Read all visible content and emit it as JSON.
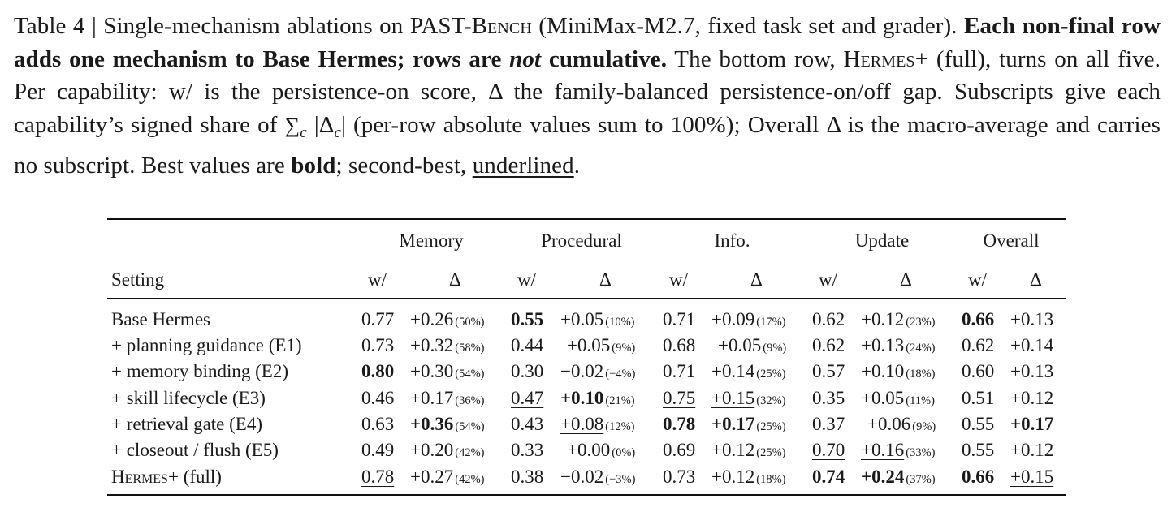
{
  "caption": {
    "label": "Table 4 | Single-mechanism ablations on ",
    "bench_prefix": "PAST-",
    "bench_sc": "Bench",
    "after_bench": " (MiniMax-M2.7, fixed task set and grader). ",
    "bold_a": "Each non-final row adds one mechanism to Base Hermes; rows are ",
    "bold_not": "not",
    "bold_b": " cumulative.",
    "after_bold": " The bottom row, ",
    "hermes_sc": "Hermes+",
    "sentence2": " (full), turns on all five. Per capability: w/ is the persistence-on score, Δ the family-balanced persistence-on/off gap. Subscripts give each capability’s signed share of ",
    "sum_sym": "∑",
    "sum_sub": "c",
    "abs_open": " |Δ",
    "abs_sub": "c",
    "abs_close": "|",
    "sentence3": " (per-row absolute values sum to 100%); Overall Δ is the macro-average and carries no subscript. Best values are ",
    "bold_word": "bold",
    "sentence4": "; second-best, ",
    "underlined_word": "underlined",
    "end": "."
  },
  "table": {
    "groups": [
      "Memory",
      "Procedural",
      "Info.",
      "Update",
      "Overall"
    ],
    "setting_header": "Setting",
    "sub_headers": [
      "w/",
      "Δ",
      "w/",
      "Δ",
      "w/",
      "Δ",
      "w/",
      "Δ",
      "w/",
      "Δ"
    ],
    "rows": [
      {
        "setting": "Base Hermes",
        "sc": false,
        "mem_w": "0.77",
        "mem_d": "+0.26",
        "mem_p": "(50%)",
        "pro_w": "0.55",
        "pro_d": "+0.05",
        "pro_p": "(10%)",
        "inf_w": "0.71",
        "inf_d": "+0.09",
        "inf_p": "(17%)",
        "upd_w": "0.62",
        "upd_d": "+0.12",
        "upd_p": "(23%)",
        "ov_w": "0.66",
        "ov_d": "+0.13"
      },
      {
        "setting": "+ planning guidance (E1)",
        "sc": false,
        "mem_w": "0.73",
        "mem_d": "+0.32",
        "mem_p": "(58%)",
        "pro_w": "0.44",
        "pro_d": "+0.05",
        "pro_p": "(9%)",
        "inf_w": "0.68",
        "inf_d": "+0.05",
        "inf_p": "(9%)",
        "upd_w": "0.62",
        "upd_d": "+0.13",
        "upd_p": "(24%)",
        "ov_w": "0.62",
        "ov_d": "+0.14"
      },
      {
        "setting": "+ memory binding (E2)",
        "sc": false,
        "mem_w": "0.80",
        "mem_d": "+0.30",
        "mem_p": "(54%)",
        "pro_w": "0.30",
        "pro_d": "−0.02",
        "pro_p": "(−4%)",
        "inf_w": "0.71",
        "inf_d": "+0.14",
        "inf_p": "(25%)",
        "upd_w": "0.57",
        "upd_d": "+0.10",
        "upd_p": "(18%)",
        "ov_w": "0.60",
        "ov_d": "+0.13"
      },
      {
        "setting": "+ skill lifecycle (E3)",
        "sc": false,
        "mem_w": "0.46",
        "mem_d": "+0.17",
        "mem_p": "(36%)",
        "pro_w": "0.47",
        "pro_d": "+0.10",
        "pro_p": "(21%)",
        "inf_w": "0.75",
        "inf_d": "+0.15",
        "inf_p": "(32%)",
        "upd_w": "0.35",
        "upd_d": "+0.05",
        "upd_p": "(11%)",
        "ov_w": "0.51",
        "ov_d": "+0.12"
      },
      {
        "setting": "+ retrieval gate (E4)",
        "sc": false,
        "mem_w": "0.63",
        "mem_d": "+0.36",
        "mem_p": "(54%)",
        "pro_w": "0.43",
        "pro_d": "+0.08",
        "pro_p": "(12%)",
        "inf_w": "0.78",
        "inf_d": "+0.17",
        "inf_p": "(25%)",
        "upd_w": "0.37",
        "upd_d": "+0.06",
        "upd_p": "(9%)",
        "ov_w": "0.55",
        "ov_d": "+0.17"
      },
      {
        "setting": "+ closeout / flush (E5)",
        "sc": false,
        "mem_w": "0.49",
        "mem_d": "+0.20",
        "mem_p": "(42%)",
        "pro_w": "0.33",
        "pro_d": "+0.00",
        "pro_p": "(0%)",
        "inf_w": "0.69",
        "inf_d": "+0.12",
        "inf_p": "(25%)",
        "upd_w": "0.70",
        "upd_d": "+0.16",
        "upd_p": "(33%)",
        "ov_w": "0.55",
        "ov_d": "+0.12"
      },
      {
        "setting_sc": "Hermes+",
        "setting_rest": " (full)",
        "sc": true,
        "mem_w": "0.78",
        "mem_d": "+0.27",
        "mem_p": "(42%)",
        "pro_w": "0.38",
        "pro_d": "−0.02",
        "pro_p": "(−3%)",
        "inf_w": "0.73",
        "inf_d": "+0.12",
        "inf_p": "(18%)",
        "upd_w": "0.74",
        "upd_d": "+0.24",
        "upd_p": "(37%)",
        "ov_w": "0.66",
        "ov_d": "+0.15"
      }
    ],
    "bold_cells": [
      [
        0,
        "pro_w"
      ],
      [
        0,
        "ov_w"
      ],
      [
        2,
        "mem_w"
      ],
      [
        3,
        "pro_d"
      ],
      [
        4,
        "mem_d"
      ],
      [
        4,
        "inf_w"
      ],
      [
        4,
        "inf_d"
      ],
      [
        4,
        "ov_d"
      ],
      [
        6,
        "upd_w"
      ],
      [
        6,
        "upd_d"
      ],
      [
        6,
        "ov_w"
      ]
    ],
    "underlined_cells": [
      [
        1,
        "mem_d"
      ],
      [
        1,
        "ov_w"
      ],
      [
        3,
        "pro_w"
      ],
      [
        3,
        "inf_w"
      ],
      [
        3,
        "inf_d"
      ],
      [
        4,
        "pro_d"
      ],
      [
        5,
        "upd_w"
      ],
      [
        5,
        "upd_d"
      ],
      [
        6,
        "mem_w"
      ],
      [
        6,
        "ov_d"
      ]
    ]
  }
}
